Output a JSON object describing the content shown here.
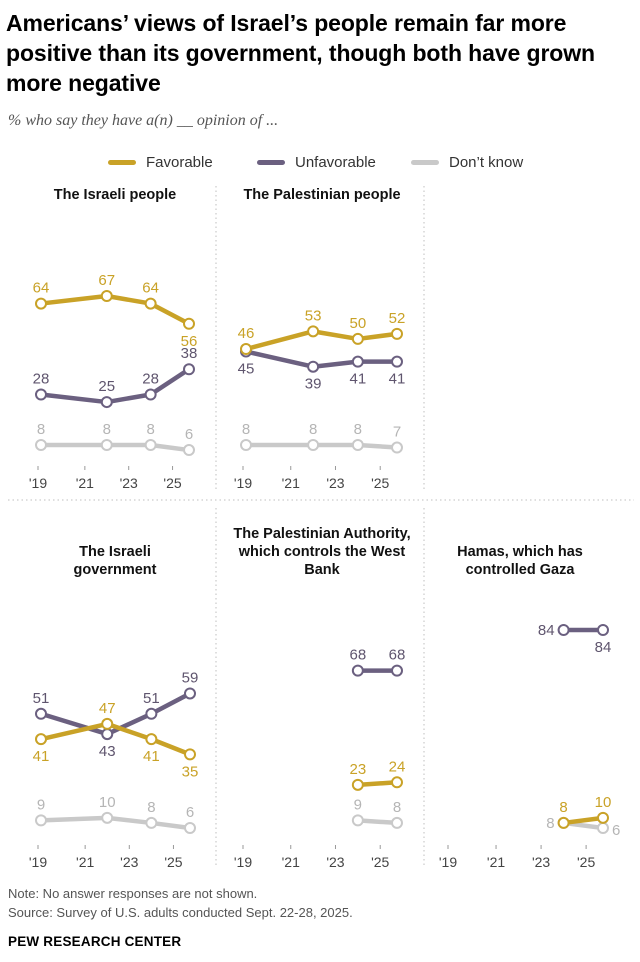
{
  "title": "Americans’ views of Israel’s people remain far more positive than its government, though both have grown more negative",
  "subtitle": "% who say they have a(n) __ opinion of ...",
  "legend": [
    {
      "name": "Favorable",
      "color": "#c9a227"
    },
    {
      "name": "Unfavorable",
      "color": "#6b6080"
    },
    {
      "name": "Don’t know",
      "color": "#c9c9c9"
    }
  ],
  "chart_data": [
    {
      "type": "line",
      "title": "The Israeli people",
      "x_ticks": [
        "'19",
        "'21",
        "'23",
        "'25"
      ],
      "series": [
        {
          "name": "Favorable",
          "points": [
            [
              2019,
              64
            ],
            [
              2022,
              67
            ],
            [
              2024,
              64
            ],
            [
              2025.75,
              56
            ]
          ]
        },
        {
          "name": "Unfavorable",
          "points": [
            [
              2019,
              28
            ],
            [
              2022,
              25
            ],
            [
              2024,
              28
            ],
            [
              2025.75,
              38
            ]
          ]
        },
        {
          "name": "Don’t know",
          "points": [
            [
              2019,
              8
            ],
            [
              2022,
              8
            ],
            [
              2024,
              8
            ],
            [
              2025.75,
              6
            ]
          ]
        }
      ]
    },
    {
      "type": "line",
      "title": "The Palestinian people",
      "x_ticks": [
        "'19",
        "'21",
        "'23",
        "'25"
      ],
      "series": [
        {
          "name": "Favorable",
          "points": [
            [
              2019,
              46
            ],
            [
              2022,
              53
            ],
            [
              2024,
              50
            ],
            [
              2025.75,
              52
            ]
          ]
        },
        {
          "name": "Unfavorable",
          "points": [
            [
              2019,
              45
            ],
            [
              2022,
              39
            ],
            [
              2024,
              41
            ],
            [
              2025.75,
              41
            ]
          ]
        },
        {
          "name": "Don’t know",
          "points": [
            [
              2019,
              8
            ],
            [
              2022,
              8
            ],
            [
              2024,
              8
            ],
            [
              2025.75,
              7
            ]
          ]
        }
      ]
    },
    {
      "type": "line",
      "title": "The Israeli government",
      "x_ticks": [
        "'19",
        "'21",
        "'23",
        "'25"
      ],
      "series": [
        {
          "name": "Favorable",
          "points": [
            [
              2019,
              41
            ],
            [
              2022,
              47
            ],
            [
              2024,
              41
            ],
            [
              2025.75,
              35
            ]
          ]
        },
        {
          "name": "Unfavorable",
          "points": [
            [
              2019,
              51
            ],
            [
              2022,
              43
            ],
            [
              2024,
              51
            ],
            [
              2025.75,
              59
            ]
          ]
        },
        {
          "name": "Don’t know",
          "points": [
            [
              2019,
              9
            ],
            [
              2022,
              10
            ],
            [
              2024,
              8
            ],
            [
              2025.75,
              6
            ]
          ]
        }
      ]
    },
    {
      "type": "line",
      "title": "The Palestinian Authority, which controls the West Bank",
      "x_ticks": [
        "'19",
        "'21",
        "'23",
        "'25"
      ],
      "series": [
        {
          "name": "Favorable",
          "points": [
            [
              2024,
              23
            ],
            [
              2025.75,
              24
            ]
          ]
        },
        {
          "name": "Unfavorable",
          "points": [
            [
              2024,
              68
            ],
            [
              2025.75,
              68
            ]
          ]
        },
        {
          "name": "Don’t know",
          "points": [
            [
              2024,
              9
            ],
            [
              2025.75,
              8
            ]
          ]
        }
      ]
    },
    {
      "type": "line",
      "title": "Hamas, which has controlled Gaza",
      "x_ticks": [
        "'19",
        "'21",
        "'23",
        "'25"
      ],
      "series": [
        {
          "name": "Favorable",
          "points": [
            [
              2024,
              8
            ],
            [
              2025.75,
              10
            ]
          ]
        },
        {
          "name": "Unfavorable",
          "points": [
            [
              2024,
              84
            ],
            [
              2025.75,
              84
            ]
          ]
        },
        {
          "name": "Don’t know",
          "points": [
            [
              2024,
              8
            ],
            [
              2025.75,
              6
            ]
          ]
        }
      ]
    }
  ],
  "note": "Note: No answer responses are not shown.",
  "source": "Source: Survey of U.S. adults conducted Sept. 22-28, 2025.",
  "brand": "PEW RESEARCH CENTER"
}
